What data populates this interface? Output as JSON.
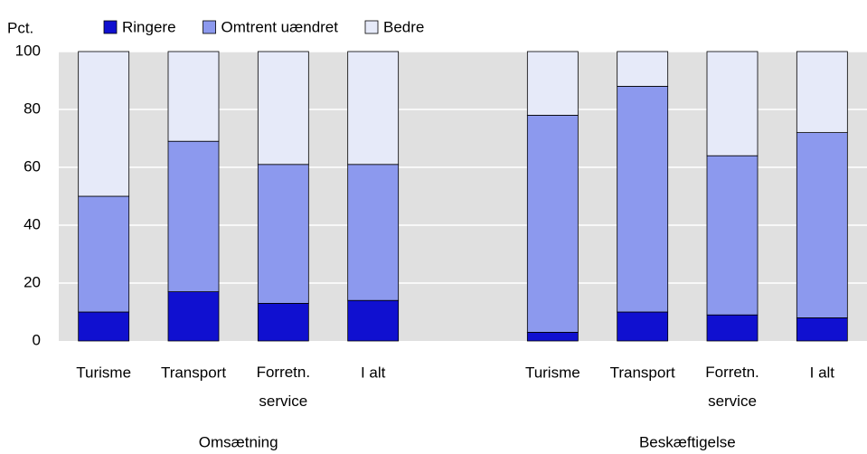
{
  "chart_data": {
    "type": "stacked_bar",
    "y_label": "Pct.",
    "categories": [
      "Turisme",
      "Transport",
      "Forretn.\nservice",
      "I alt",
      null,
      "Turisme",
      "Transport",
      "Forretn.\nservice",
      "I alt"
    ],
    "group_labels": [
      "Omsætning",
      "Beskæftigelse"
    ],
    "series": [
      {
        "name": "Ringere",
        "color": "#1010d0",
        "values": [
          10,
          17,
          13,
          14,
          null,
          3,
          10,
          9,
          8
        ]
      },
      {
        "name": "Omtrent uændret",
        "color": "#8c99ee",
        "values": [
          40,
          52,
          48,
          47,
          null,
          75,
          78,
          55,
          64
        ]
      },
      {
        "name": "Bedre",
        "color": "#e6eaf9",
        "values": [
          50,
          31,
          39,
          39,
          null,
          22,
          12,
          36,
          28
        ]
      }
    ],
    "ylim": [
      0,
      100
    ],
    "yticks": [
      0,
      20,
      40,
      60,
      80,
      100
    ],
    "grid": true
  }
}
